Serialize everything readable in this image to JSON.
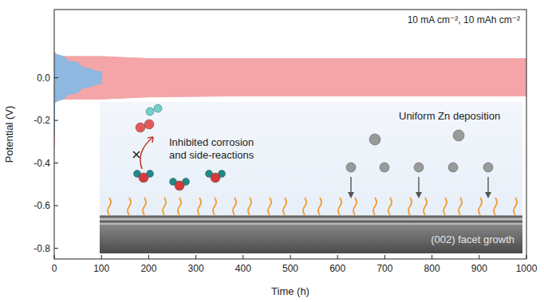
{
  "chart_data": {
    "type": "area",
    "xlabel": "Time (h)",
    "ylabel": "Potential (V)",
    "xlim": [
      0,
      1000
    ],
    "ylim": [
      -0.85,
      0.32
    ],
    "xticks": [
      0,
      100,
      200,
      300,
      400,
      500,
      600,
      700,
      800,
      900,
      1000
    ],
    "yticks": [
      {
        "value": 0,
        "label": "0.0"
      },
      -0.2,
      -0.4,
      -0.6,
      -0.8
    ],
    "grid": false,
    "series": [
      {
        "color": "#f4a5a8",
        "x": [
          0,
          1,
          10,
          100,
          200,
          400,
          600,
          800,
          1000
        ],
        "upper": [
          0,
          0.12,
          0.1,
          0.1,
          0.09,
          0.09,
          0.09,
          0.09,
          0.09
        ],
        "lower": [
          -0.32,
          -0.12,
          -0.1,
          -0.1,
          -0.09,
          -0.085,
          -0.085,
          -0.085,
          -0.085
        ]
      },
      {
        "color": "#8fb8e0",
        "x": [
          0,
          1,
          5,
          20,
          30,
          50,
          60,
          80,
          90,
          100
        ],
        "upper": [
          0.05,
          0.11,
          0.11,
          0.1,
          0.08,
          0.07,
          0.05,
          0.04,
          0.03,
          0.03
        ],
        "lower": [
          -0.28,
          -0.11,
          -0.11,
          -0.1,
          -0.08,
          -0.07,
          -0.05,
          -0.04,
          -0.03,
          -0.03
        ]
      }
    ],
    "annotations": [
      "10 mA cm⁻², 10 mAh cm⁻²",
      "Inhibited corrosion",
      "and side-reactions",
      "Uniform Zn  deposition",
      "(002) facet growth"
    ]
  }
}
